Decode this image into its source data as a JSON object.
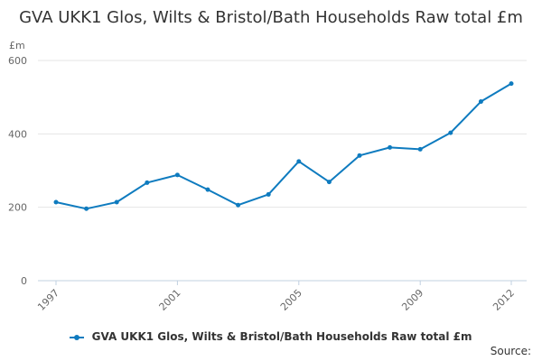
{
  "chart_data": {
    "type": "line",
    "title": "GVA UKK1 Glos, Wilts & Bristol/Bath Households Raw total £m",
    "ylabel": "£m",
    "xlabel": "",
    "x": [
      1997,
      1998,
      1999,
      2000,
      2001,
      2002,
      2003,
      2004,
      2005,
      2006,
      2007,
      2008,
      2009,
      2010,
      2011,
      2012
    ],
    "series": [
      {
        "name": "GVA UKK1 Glos, Wilts & Bristol/Bath Households Raw total £m",
        "values": [
          214,
          196,
          214,
          267,
          288,
          248,
          206,
          235,
          325,
          269,
          341,
          363,
          358,
          403,
          488,
          537
        ]
      }
    ],
    "x_ticks": [
      "1997",
      "2001",
      "2005",
      "2009",
      "2012"
    ],
    "y_ticks": [
      0,
      200,
      400,
      600
    ],
    "ylim": [
      0,
      600
    ],
    "grid": true,
    "legend": "bottom",
    "color": "#0e7bbf",
    "source_label": "Source:"
  }
}
